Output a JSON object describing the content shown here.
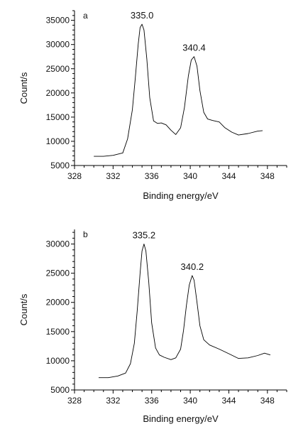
{
  "chart_data": [
    {
      "type": "line",
      "panel_label": "a",
      "title": "",
      "xlabel": "Binding energy/eV",
      "ylabel": "Count/s",
      "xlim": [
        328,
        350
      ],
      "ylim": [
        5000,
        37000
      ],
      "xticks": [
        328,
        332,
        336,
        340,
        344,
        348
      ],
      "yticks": [
        5000,
        10000,
        15000,
        20000,
        25000,
        30000,
        35000
      ],
      "grid": false,
      "annotations": [
        {
          "text": "335.0",
          "x": 335.0,
          "y": 34200
        },
        {
          "text": "340.4",
          "x": 340.4,
          "y": 27500
        }
      ],
      "series": [
        {
          "x": [
            330.0,
            331.0,
            332.0,
            333.0,
            333.5,
            334.0,
            334.3,
            334.6,
            334.8,
            335.0,
            335.2,
            335.5,
            335.8,
            336.2,
            336.6,
            337.0,
            337.5,
            338.0,
            338.5,
            339.0,
            339.4,
            339.8,
            340.1,
            340.4,
            340.7,
            341.0,
            341.4,
            341.8,
            342.3,
            343.0,
            343.6,
            344.3,
            345.0,
            346.0,
            347.0,
            347.5
          ],
          "y": [
            6900,
            6900,
            7100,
            7600,
            10500,
            16500,
            23000,
            30000,
            33500,
            34200,
            33000,
            27000,
            19000,
            14200,
            13700,
            13800,
            13400,
            12300,
            11400,
            12800,
            17000,
            23500,
            26800,
            27500,
            25500,
            20500,
            16000,
            14600,
            14300,
            14000,
            12800,
            11900,
            11300,
            11600,
            12100,
            12200
          ]
        }
      ]
    },
    {
      "type": "line",
      "panel_label": "b",
      "title": "",
      "xlabel": "Binding energy/eV",
      "ylabel": "Count/s",
      "xlim": [
        328,
        350
      ],
      "ylim": [
        5000,
        32500
      ],
      "xticks": [
        328,
        332,
        336,
        340,
        344,
        348
      ],
      "yticks": [
        5000,
        10000,
        15000,
        20000,
        25000,
        30000
      ],
      "grid": false,
      "annotations": [
        {
          "text": "335.2",
          "x": 335.2,
          "y": 30000
        },
        {
          "text": "340.2",
          "x": 340.2,
          "y": 24600
        }
      ],
      "series": [
        {
          "x": [
            330.5,
            331.5,
            332.5,
            333.3,
            333.8,
            334.2,
            334.5,
            334.8,
            335.0,
            335.2,
            335.4,
            335.7,
            336.0,
            336.4,
            336.8,
            337.3,
            338.0,
            338.5,
            339.0,
            339.3,
            339.6,
            339.9,
            340.2,
            340.4,
            340.7,
            341.0,
            341.4,
            342.0,
            343.0,
            344.0,
            345.0,
            346.0,
            347.0,
            347.7,
            348.3
          ],
          "y": [
            7100,
            7100,
            7400,
            7900,
            9500,
            13000,
            18500,
            25000,
            28800,
            30000,
            28800,
            23500,
            16500,
            12200,
            11000,
            10600,
            10200,
            10500,
            12000,
            15200,
            19500,
            23000,
            24600,
            23800,
            20000,
            16000,
            13600,
            12700,
            12000,
            11200,
            10400,
            10500,
            10900,
            11300,
            11000
          ]
        }
      ]
    }
  ]
}
